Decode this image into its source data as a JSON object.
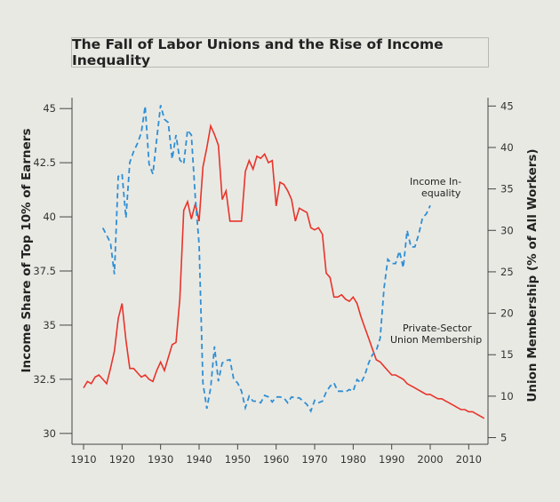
{
  "chart_data": {
    "type": "line",
    "title": "The Fall of Labor Unions and the Rise of Income Inequality",
    "ylabel_left": "Income Share of Top 10% of Earners",
    "ylabel_right": "Union Membership (% of All Workers)",
    "xlim": [
      1907,
      2015
    ],
    "ylim_left": [
      29.5,
      45.5
    ],
    "ylim_right": [
      4.2,
      46
    ],
    "x_ticks": [
      1910,
      1920,
      1930,
      1940,
      1950,
      1960,
      1970,
      1980,
      1990,
      2000,
      2010
    ],
    "y_ticks_left": [
      30,
      32.5,
      35,
      37.5,
      40,
      42.5,
      45
    ],
    "y_ticks_right": [
      5,
      10,
      15,
      20,
      25,
      30,
      35,
      40,
      45
    ],
    "grid": false,
    "colors": {
      "inequality": "#e8342a",
      "union": "#2f8fd4",
      "axis": "#444444"
    },
    "series": [
      {
        "name": "Income Inequality",
        "axis": "left",
        "style": "solid",
        "x": [
          1910,
          1911,
          1912,
          1913,
          1914,
          1915,
          1916,
          1917,
          1918,
          1919,
          1920,
          1921,
          1922,
          1923,
          1924,
          1925,
          1926,
          1927,
          1928,
          1929,
          1930,
          1931,
          1932,
          1933,
          1934,
          1935,
          1936,
          1937,
          1938,
          1939,
          1940,
          1941,
          1942,
          1943,
          1944,
          1945,
          1946,
          1947,
          1948,
          1949,
          1950,
          1951,
          1952,
          1953,
          1954,
          1955,
          1956,
          1957,
          1958,
          1959,
          1960,
          1961,
          1962,
          1963,
          1964,
          1965,
          1966,
          1967,
          1968,
          1969,
          1970,
          1971,
          1972,
          1973,
          1974,
          1975,
          1976,
          1977,
          1978,
          1979,
          1980,
          1981,
          1982,
          1983,
          1984,
          1985,
          1986,
          1987,
          1988,
          1989,
          1990,
          1991,
          1992,
          1993,
          1994,
          1995,
          1996,
          1997,
          1998,
          1999,
          2000,
          2001,
          2002,
          2003,
          2004,
          2005,
          2006,
          2007,
          2008,
          2009,
          2010,
          2011,
          2012,
          2013,
          2014
        ],
        "y": [
          32.1,
          32.4,
          32.3,
          32.6,
          32.7,
          32.5,
          32.3,
          33.0,
          33.8,
          35.3,
          36.0,
          34.3,
          33.0,
          33.0,
          32.8,
          32.6,
          32.7,
          32.5,
          32.4,
          32.9,
          33.3,
          32.9,
          33.5,
          34.1,
          34.2,
          36.2,
          40.3,
          40.7,
          39.9,
          40.6,
          39.8,
          42.3,
          43.2,
          44.2,
          43.8,
          43.3,
          40.8,
          41.2,
          39.8,
          39.8,
          39.8,
          39.8,
          42.1,
          42.6,
          42.2,
          42.8,
          42.7,
          42.9,
          42.5,
          42.6,
          40.5,
          41.6,
          41.5,
          41.2,
          40.8,
          39.8,
          40.4,
          40.3,
          40.2,
          39.5,
          39.4,
          39.5,
          39.2,
          37.4,
          37.2,
          36.3,
          36.3,
          36.4,
          36.2,
          36.1,
          36.3,
          36.0,
          35.4,
          34.9,
          34.4,
          33.9,
          33.4,
          33.3,
          33.1,
          32.9,
          32.7,
          32.7,
          32.6,
          32.5,
          32.3,
          32.2,
          32.1,
          32.0,
          31.9,
          31.8,
          31.8,
          31.7,
          31.6,
          31.6,
          31.5,
          31.4,
          31.3,
          31.2,
          31.1,
          31.1,
          31.0,
          31.0,
          30.9,
          30.8,
          30.7
        ]
      },
      {
        "name": "Private-Sector Union Membership",
        "axis": "right",
        "style": "dashed",
        "x": [
          1915,
          1916,
          1917,
          1918,
          1919,
          1920,
          1921,
          1922,
          1923,
          1924,
          1925,
          1926,
          1927,
          1928,
          1929,
          1930,
          1931,
          1932,
          1933,
          1934,
          1935,
          1936,
          1937,
          1938,
          1939,
          1940,
          1941,
          1942,
          1943,
          1944,
          1945,
          1946,
          1947,
          1948,
          1949,
          1950,
          1951,
          1952,
          1953,
          1954,
          1955,
          1956,
          1957,
          1958,
          1959,
          1960,
          1961,
          1962,
          1963,
          1964,
          1965,
          1966,
          1967,
          1968,
          1969,
          1970,
          1971,
          1972,
          1973,
          1974,
          1975,
          1976,
          1977,
          1978,
          1979,
          1980,
          1981,
          1982,
          1983,
          1984,
          1985,
          1986,
          1987,
          1988,
          1989,
          1990,
          1991,
          1992,
          1993,
          1994,
          1995,
          1996,
          1997,
          1998,
          1999,
          2000
        ],
        "y": [
          30.3,
          29.4,
          28.5,
          24.7,
          36.5,
          36.8,
          31.5,
          38.2,
          39.5,
          40.5,
          41.8,
          45.0,
          38.0,
          36.8,
          41.0,
          45.1,
          43.4,
          43.0,
          38.6,
          41.5,
          38.5,
          38.0,
          42.1,
          41.5,
          34.0,
          28.3,
          11.6,
          8.5,
          11.0,
          16.0,
          11.8,
          14.0,
          14.3,
          14.4,
          12.0,
          11.6,
          10.6,
          8.6,
          10.0,
          9.4,
          9.4,
          9.2,
          10.1,
          9.9,
          9.3,
          9.9,
          9.9,
          9.8,
          9.2,
          9.9,
          9.8,
          9.8,
          9.4,
          9.0,
          8.2,
          9.5,
          9.2,
          9.4,
          10.5,
          11.2,
          11.6,
          10.6,
          10.6,
          10.5,
          10.8,
          10.6,
          12.0,
          11.6,
          12.5,
          14.0,
          15.0,
          15.5,
          17.0,
          23.0,
          26.5,
          26.0,
          26.0,
          27.5,
          25.5,
          30.0,
          28.0,
          28.0,
          29.5,
          31.5,
          32.0,
          33.0
        ]
      }
    ],
    "annotations": {
      "income": [
        "Income In-",
        "equality"
      ],
      "union": [
        "Private-Sector",
        "Union Membership"
      ]
    }
  }
}
